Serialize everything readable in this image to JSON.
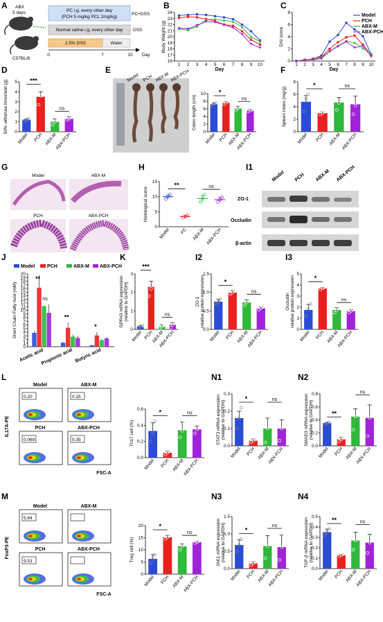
{
  "colors": {
    "model": "#2b4bd6",
    "pch": "#e8211f",
    "abxm": "#2fb83a",
    "abxpch": "#a023d8"
  },
  "groups": [
    "Model",
    "PCH",
    "ABX-M",
    "ABX-PCH"
  ],
  "panel_a": {
    "label": "A",
    "abx": "ABX",
    "days": "5 days",
    "mouse": "C57BL/6",
    "box1_line1": "PC i.g, every other day",
    "box1_line2": "(PCH 5 mg/kg PCL 2mg/kg)",
    "box1_tag": "PC+DSS",
    "box2": "Normal saline i.g, every other day",
    "box2_tag": "DSS",
    "dss": "2.5% DSS",
    "water": "Water",
    "axis_label": "Day",
    "ticks": [
      "0",
      "7",
      "10"
    ]
  },
  "panels": {
    "B": "B",
    "C": "C",
    "D": "D",
    "E": "E",
    "F": "F",
    "G": "G",
    "H": "H",
    "I1": "I1",
    "J": "J",
    "K": "K",
    "I2": "I2",
    "I3": "I3",
    "L": "L",
    "N1": "N1",
    "N2": "N2",
    "M": "M",
    "N3": "N3",
    "N4": "N4"
  },
  "chart_data": [
    {
      "id": "B",
      "type": "line",
      "xlabel": "Day",
      "ylabel": "Body Weight (g)",
      "ylim": [
        16,
        24
      ],
      "yticks": [
        16,
        17,
        18,
        19,
        20,
        21,
        22,
        23,
        24
      ],
      "x": [
        1,
        2,
        3,
        4,
        5,
        6,
        7,
        8,
        9,
        10
      ],
      "series": [
        {
          "name": "Model",
          "values": [
            23.5,
            23.6,
            23.7,
            23.6,
            23.4,
            23.2,
            22.9,
            22.0,
            20.9,
            19.4
          ]
        },
        {
          "name": "PCH",
          "values": [
            23.1,
            23.3,
            23.2,
            22.9,
            22.6,
            22.0,
            21.8,
            20.9,
            19.5,
            18.7
          ]
        },
        {
          "name": "ABX-M",
          "values": [
            21.3,
            21.1,
            21.7,
            22.8,
            22.9,
            22.7,
            22.5,
            21.6,
            20.0,
            19.2
          ]
        },
        {
          "name": "ABX-PCH",
          "values": [
            21.4,
            21.3,
            21.9,
            22.5,
            22.4,
            22.0,
            21.5,
            20.4,
            18.8,
            18.2
          ]
        }
      ]
    },
    {
      "id": "C",
      "type": "line",
      "xlabel": "Day",
      "ylabel": "DAI score",
      "ylim": [
        0,
        8
      ],
      "yticks": [
        0,
        2,
        4,
        6,
        8
      ],
      "x": [
        1,
        2,
        3,
        4,
        5,
        6,
        7,
        8,
        9,
        10
      ],
      "legend": [
        "Model",
        "PCH",
        "ABX-M",
        "ABX-PCH"
      ],
      "series": [
        {
          "name": "Model",
          "values": [
            0.0,
            0.1,
            0.3,
            0.9,
            3.2,
            4.3,
            6.3,
            5.2,
            4.1,
            1.1
          ]
        },
        {
          "name": "PCH",
          "values": [
            0.0,
            0.1,
            0.4,
            0.7,
            2.0,
            3.1,
            3.9,
            4.2,
            2.7,
            1.0
          ]
        },
        {
          "name": "ABX-M",
          "values": [
            0.0,
            0.2,
            0.3,
            0.6,
            1.6,
            2.5,
            3.3,
            3.0,
            2.1,
            1.2
          ]
        },
        {
          "name": "ABX-PCH",
          "values": [
            0.0,
            0.2,
            0.2,
            0.4,
            1.6,
            2.4,
            3.2,
            2.2,
            2.5,
            0.7
          ]
        }
      ]
    },
    {
      "id": "D",
      "type": "bar",
      "ylabel": "50% withdraw threshold (g)",
      "ylim": [
        0,
        5
      ],
      "yticks": [
        0,
        1,
        2,
        3,
        4,
        5
      ],
      "categories": [
        "Model",
        "PCH",
        "ABX-M",
        "ABX-PCH"
      ],
      "values": [
        1.2,
        3.5,
        1.0,
        1.3
      ],
      "errors": [
        0.1,
        0.5,
        0.3,
        0.2
      ],
      "points": [
        [
          1.1,
          1.2,
          1.3
        ],
        [
          2.7,
          3.6,
          4.2
        ],
        [
          0.7,
          1.0,
          1.4
        ],
        [
          1.2,
          1.3,
          1.5
        ]
      ],
      "sig": [
        {
          "from": 0,
          "to": 1,
          "label": "***"
        },
        {
          "from": 2,
          "to": 3,
          "label": "ns"
        }
      ]
    },
    {
      "id": "E",
      "type": "bar",
      "ylabel": "Colon length (cm)",
      "ylim": [
        0,
        10
      ],
      "yticks": [
        0,
        2,
        4,
        6,
        8,
        10
      ],
      "categories": [
        "Model",
        "PCH",
        "ABX-M",
        "ABX-PCH"
      ],
      "values": [
        7.2,
        7.6,
        6.1,
        5.6
      ],
      "errors": [
        0.3,
        0.3,
        0.6,
        0.3
      ],
      "points": [
        [
          6.8,
          7.3,
          7.5
        ],
        [
          7.2,
          7.6,
          8.0
        ],
        [
          5.6,
          6.2,
          6.5
        ],
        [
          5.3,
          5.6,
          5.8
        ]
      ],
      "sig": [
        {
          "from": 0,
          "to": 1,
          "label": "*"
        },
        {
          "from": 2,
          "to": 3,
          "label": "ns"
        }
      ],
      "image_labels": [
        "Model",
        "PCH",
        "ABX-M",
        "ABX-PCH"
      ]
    },
    {
      "id": "F",
      "type": "bar",
      "ylabel": "Spleen Index (mg/g)",
      "ylim": [
        0,
        8
      ],
      "yticks": [
        0,
        2,
        4,
        6,
        8
      ],
      "categories": [
        "Model",
        "PCH",
        "ABX-M",
        "ABX-PCH"
      ],
      "values": [
        4.8,
        3.0,
        4.7,
        4.4
      ],
      "errors": [
        1.0,
        0.2,
        0.8,
        1.3
      ],
      "points": [
        [
          3.3,
          5.3,
          6.0
        ],
        [
          2.8,
          3.0,
          3.2
        ],
        [
          3.5,
          4.6,
          6.0
        ],
        [
          2.8,
          4.2,
          6.0
        ]
      ],
      "sig": [
        {
          "from": 0,
          "to": 1,
          "label": "*"
        },
        {
          "from": 2,
          "to": 3,
          "label": "ns"
        }
      ]
    },
    {
      "id": "H",
      "type": "scatter",
      "ylabel": "Histological score",
      "ylim": [
        0,
        15
      ],
      "yticks": [
        0,
        5,
        10,
        15
      ],
      "categories": [
        "Model",
        "PC",
        "ABX-M",
        "ABX-PCH"
      ],
      "values": [
        10.0,
        3.4,
        9.4,
        9.0
      ],
      "errors": [
        0.6,
        0.4,
        1.1,
        0.8
      ],
      "points": [
        [
          9.2,
          10.0,
          10.8
        ],
        [
          3.0,
          3.4,
          3.8
        ],
        [
          8.3,
          9.4,
          10.6
        ],
        [
          8.2,
          9.0,
          9.8
        ]
      ],
      "sig": [
        {
          "from": 0,
          "to": 1,
          "label": "**"
        },
        {
          "from": 2,
          "to": 3,
          "label": "ns"
        }
      ],
      "image_labels": [
        "Model",
        "ABX-M",
        "PCH",
        "ABX-PCH"
      ]
    },
    {
      "id": "I1",
      "type": "table",
      "columns": [
        "Model",
        "PCH",
        "ABX-M",
        "ABX-PCH"
      ],
      "rows": [
        "ZO-1",
        "Occludin",
        "β-actin"
      ]
    },
    {
      "id": "J",
      "type": "bar",
      "ylabel": "Short Chain Fatty Acid (mM)",
      "ylim": [
        0,
        20
      ],
      "yticks": [
        0,
        1,
        2,
        3,
        4,
        5,
        6,
        7,
        8,
        9,
        10,
        11,
        12,
        13,
        14,
        15,
        16,
        17,
        18,
        19,
        20
      ],
      "legend": [
        "Model",
        "PCH",
        "ABX-M",
        "ABX-PCH"
      ],
      "categories": [
        "Acetic acid",
        "Propionic acid",
        "Butyric acid"
      ],
      "series": [
        {
          "name": "Model",
          "values": [
            3.8,
            1.1,
            0.4
          ],
          "errors": [
            0.5,
            0.2,
            0.1
          ]
        },
        {
          "name": "PCH",
          "values": [
            16.2,
            5.2,
            3.1
          ],
          "errors": [
            3.5,
            1.5,
            0.9
          ]
        },
        {
          "name": "ABX-M",
          "values": [
            11.1,
            2.8,
            1.8
          ],
          "errors": [
            0.3,
            0.5,
            0.3
          ]
        },
        {
          "name": "ABX-PCH",
          "values": [
            9.3,
            2.4,
            2.3
          ],
          "errors": [
            2.3,
            0.6,
            0.4
          ]
        }
      ],
      "sig": [
        {
          "cat": 0,
          "label": "**"
        },
        {
          "cat": 0,
          "label": "ns"
        },
        {
          "cat": 1,
          "label": "**"
        },
        {
          "cat": 2,
          "label": "*"
        }
      ]
    },
    {
      "id": "K",
      "type": "bar",
      "ylabel": "GPR43 mRNA expression",
      "ylabel2": "(relative to GAPDH)",
      "ylim": [
        0,
        3
      ],
      "yticks": [
        0,
        1,
        2,
        3
      ],
      "categories": [
        "Model",
        "PCH",
        "ABX-M",
        "ABX-PCH"
      ],
      "values": [
        0.15,
        2.3,
        0.15,
        0.25
      ],
      "errors": [
        0.05,
        0.3,
        0.1,
        0.1
      ],
      "points": [
        [
          0.1,
          0.15,
          0.2
        ],
        [
          1.8,
          2.2,
          2.9
        ],
        [
          0.05,
          0.15,
          0.3
        ],
        [
          0.1,
          0.25,
          0.35
        ]
      ],
      "sig": [
        {
          "from": 0,
          "to": 1,
          "label": "***"
        },
        {
          "from": 2,
          "to": 3,
          "label": "ns"
        }
      ]
    },
    {
      "id": "I2",
      "type": "bar",
      "ylabel": "ZO-1",
      "ylabel2": "relative protein expression",
      "ylim": [
        0,
        1.5
      ],
      "yticks": [
        0.0,
        0.5,
        1.0,
        1.5
      ],
      "categories": [
        "Model",
        "PCH",
        "ABX-M",
        "ABX-PCH"
      ],
      "values": [
        0.75,
        1.0,
        0.73,
        0.57
      ],
      "errors": [
        0.06,
        0.05,
        0.07,
        0.04
      ],
      "points": [
        [
          0.68,
          0.74,
          0.82
        ],
        [
          0.96,
          1.0,
          1.04
        ],
        [
          0.65,
          0.73,
          0.8
        ],
        [
          0.53,
          0.57,
          0.61
        ]
      ],
      "sig": [
        {
          "from": 0,
          "to": 1,
          "label": "*"
        },
        {
          "from": 2,
          "to": 3,
          "label": "ns"
        }
      ]
    },
    {
      "id": "I3",
      "type": "bar",
      "ylabel": "Occludin",
      "ylabel2": "relative protein expression",
      "ylim": [
        0,
        5
      ],
      "yticks": [
        0,
        1,
        2,
        3,
        4,
        5
      ],
      "categories": [
        "Model",
        "PCH",
        "ABX-M",
        "ABX-PCH"
      ],
      "values": [
        1.75,
        3.7,
        1.75,
        1.65
      ],
      "errors": [
        0.5,
        0.1,
        0.2,
        0.15
      ],
      "points": [
        [
          1.2,
          1.8,
          2.3
        ],
        [
          3.6,
          3.7,
          3.8
        ],
        [
          1.5,
          1.75,
          1.9
        ],
        [
          1.5,
          1.65,
          1.8
        ]
      ],
      "sig": [
        {
          "from": 0,
          "to": 1,
          "label": "*"
        },
        {
          "from": 2,
          "to": 3,
          "label": "ns"
        }
      ]
    },
    {
      "id": "Lbar",
      "type": "bar",
      "ylabel": "Th17 cell (%)",
      "ylim": [
        0,
        0.6
      ],
      "yticks": [
        0.0,
        0.2,
        0.4,
        0.6
      ],
      "categories": [
        "Model",
        "PCH",
        "ABX-M",
        "ABX-PCH"
      ],
      "values": [
        0.33,
        0.06,
        0.34,
        0.35
      ],
      "errors": [
        0.1,
        0.02,
        0.1,
        0.04
      ],
      "points": [
        [
          0.2,
          0.3,
          0.45
        ],
        [
          0.04,
          0.06,
          0.08
        ],
        [
          0.25,
          0.33,
          0.45
        ],
        [
          0.3,
          0.35,
          0.4
        ]
      ],
      "sig": [
        {
          "from": 0,
          "to": 1,
          "label": "*"
        },
        {
          "from": 2,
          "to": 3,
          "label": "ns"
        }
      ]
    },
    {
      "id": "N1",
      "type": "bar",
      "ylabel": "STAT3 mRNA expression",
      "ylabel2": "(relative to GAPDH)",
      "ylim": [
        0,
        0.3
      ],
      "yticks": [
        0.0,
        0.1,
        0.2,
        0.3
      ],
      "categories": [
        "Model",
        "PCH",
        "ABX-M",
        "ABX-PCH"
      ],
      "values": [
        0.16,
        0.03,
        0.1,
        0.1
      ],
      "errors": [
        0.04,
        0.01,
        0.06,
        0.05
      ],
      "points": [
        [
          0.1,
          0.16,
          0.22
        ],
        [
          0.02,
          0.03,
          0.04
        ],
        [
          0.02,
          0.1,
          0.22
        ],
        [
          0.03,
          0.1,
          0.2
        ]
      ],
      "sig": [
        {
          "from": 0,
          "to": 1,
          "label": "*"
        },
        {
          "from": 2,
          "to": 3,
          "label": "ns"
        }
      ]
    },
    {
      "id": "N2",
      "type": "bar",
      "ylabel": "SMAD3 mRNA expression",
      "ylabel2": "(relative to GAPDH)",
      "ylim": [
        0,
        0.8
      ],
      "yticks": [
        0.0,
        0.2,
        0.4,
        0.6,
        0.8
      ],
      "categories": [
        "Model",
        "PCH",
        "ABX-M",
        "ABX-PCH"
      ],
      "values": [
        0.35,
        0.1,
        0.45,
        0.43
      ],
      "errors": [
        0.01,
        0.03,
        0.12,
        0.2
      ],
      "points": [
        [
          0.34,
          0.35,
          0.36
        ],
        [
          0.07,
          0.1,
          0.14
        ],
        [
          0.25,
          0.45,
          0.6
        ],
        [
          0.15,
          0.43,
          0.7
        ]
      ],
      "sig": [
        {
          "from": 0,
          "to": 1,
          "label": "**"
        },
        {
          "from": 2,
          "to": 3,
          "label": "ns"
        }
      ]
    },
    {
      "id": "Mbar",
      "type": "bar",
      "ylabel": "Treg cell (%)",
      "ylim": [
        0,
        20
      ],
      "yticks": [
        0,
        5,
        10,
        15,
        20
      ],
      "categories": [
        "Model",
        "PCH",
        "ABX-M",
        "ABX-PCH"
      ],
      "values": [
        6.3,
        15.2,
        11.5,
        13.2
      ],
      "errors": [
        1.7,
        0.8,
        1.0,
        0.5
      ],
      "points": [
        [
          4.5,
          6.3,
          8.0
        ],
        [
          14.5,
          15.2,
          16.0
        ],
        [
          10.0,
          11.5,
          12.8
        ],
        [
          12.8,
          13.2,
          13.7
        ]
      ],
      "sig": [
        {
          "from": 0,
          "to": 1,
          "label": "*"
        },
        {
          "from": 2,
          "to": 3,
          "label": "ns"
        }
      ]
    },
    {
      "id": "N3",
      "type": "bar",
      "ylabel": "JAK1 mRNA expression",
      "ylabel2": "(relative to GAPDH)",
      "ylim": [
        0,
        1.5
      ],
      "yticks": [
        0.0,
        0.5,
        1.0,
        1.5
      ],
      "categories": [
        "Model",
        "PCH",
        "ABX-M",
        "ABX-PCH"
      ],
      "values": [
        0.68,
        0.15,
        0.65,
        0.62
      ],
      "errors": [
        0.15,
        0.05,
        0.3,
        0.35
      ],
      "points": [
        [
          0.5,
          0.68,
          0.85
        ],
        [
          0.1,
          0.15,
          0.2
        ],
        [
          0.3,
          0.65,
          1.0
        ],
        [
          0.25,
          0.62,
          1.0
        ]
      ],
      "sig": [
        {
          "from": 0,
          "to": 1,
          "label": "*"
        },
        {
          "from": 2,
          "to": 3,
          "label": "ns"
        }
      ]
    },
    {
      "id": "N4",
      "type": "bar",
      "ylabel": "TGF-β mRNA expression",
      "ylabel2": "(relative to GAPDH)",
      "ylim": [
        0,
        0.5
      ],
      "yticks": [
        0.0,
        0.1,
        0.2,
        0.3,
        0.4,
        0.5
      ],
      "categories": [
        "Model",
        "PCH",
        "ABX-M",
        "ABX-PCH"
      ],
      "values": [
        0.35,
        0.13,
        0.27,
        0.25
      ],
      "errors": [
        0.03,
        0.01,
        0.08,
        0.08
      ],
      "points": [
        [
          0.32,
          0.35,
          0.38
        ],
        [
          0.12,
          0.13,
          0.14
        ],
        [
          0.18,
          0.27,
          0.37
        ],
        [
          0.15,
          0.25,
          0.35
        ]
      ],
      "sig": [
        {
          "from": 0,
          "to": 1,
          "label": "**"
        },
        {
          "from": 2,
          "to": 3,
          "label": "ns"
        }
      ]
    }
  ],
  "flow": {
    "L": {
      "ylabel": "IL17A-PE",
      "xlabel": "FSC-A",
      "quads": [
        {
          "name": "Model",
          "val": "0.20"
        },
        {
          "name": "ABX-M",
          "val": "0.15"
        },
        {
          "name": "PCH",
          "val": "0.069"
        },
        {
          "name": "ABX-PCH",
          "val": "0.35"
        }
      ]
    },
    "M": {
      "ylabel": "FoxP3-PE",
      "xlabel": "FSC-A",
      "quads": [
        {
          "name": "Model",
          "val": "5.84"
        },
        {
          "name": "ABX-M",
          "val": ""
        },
        {
          "name": "PCH",
          "val": "9.53"
        },
        {
          "name": "ABX-PCH",
          "val": ""
        }
      ]
    }
  }
}
